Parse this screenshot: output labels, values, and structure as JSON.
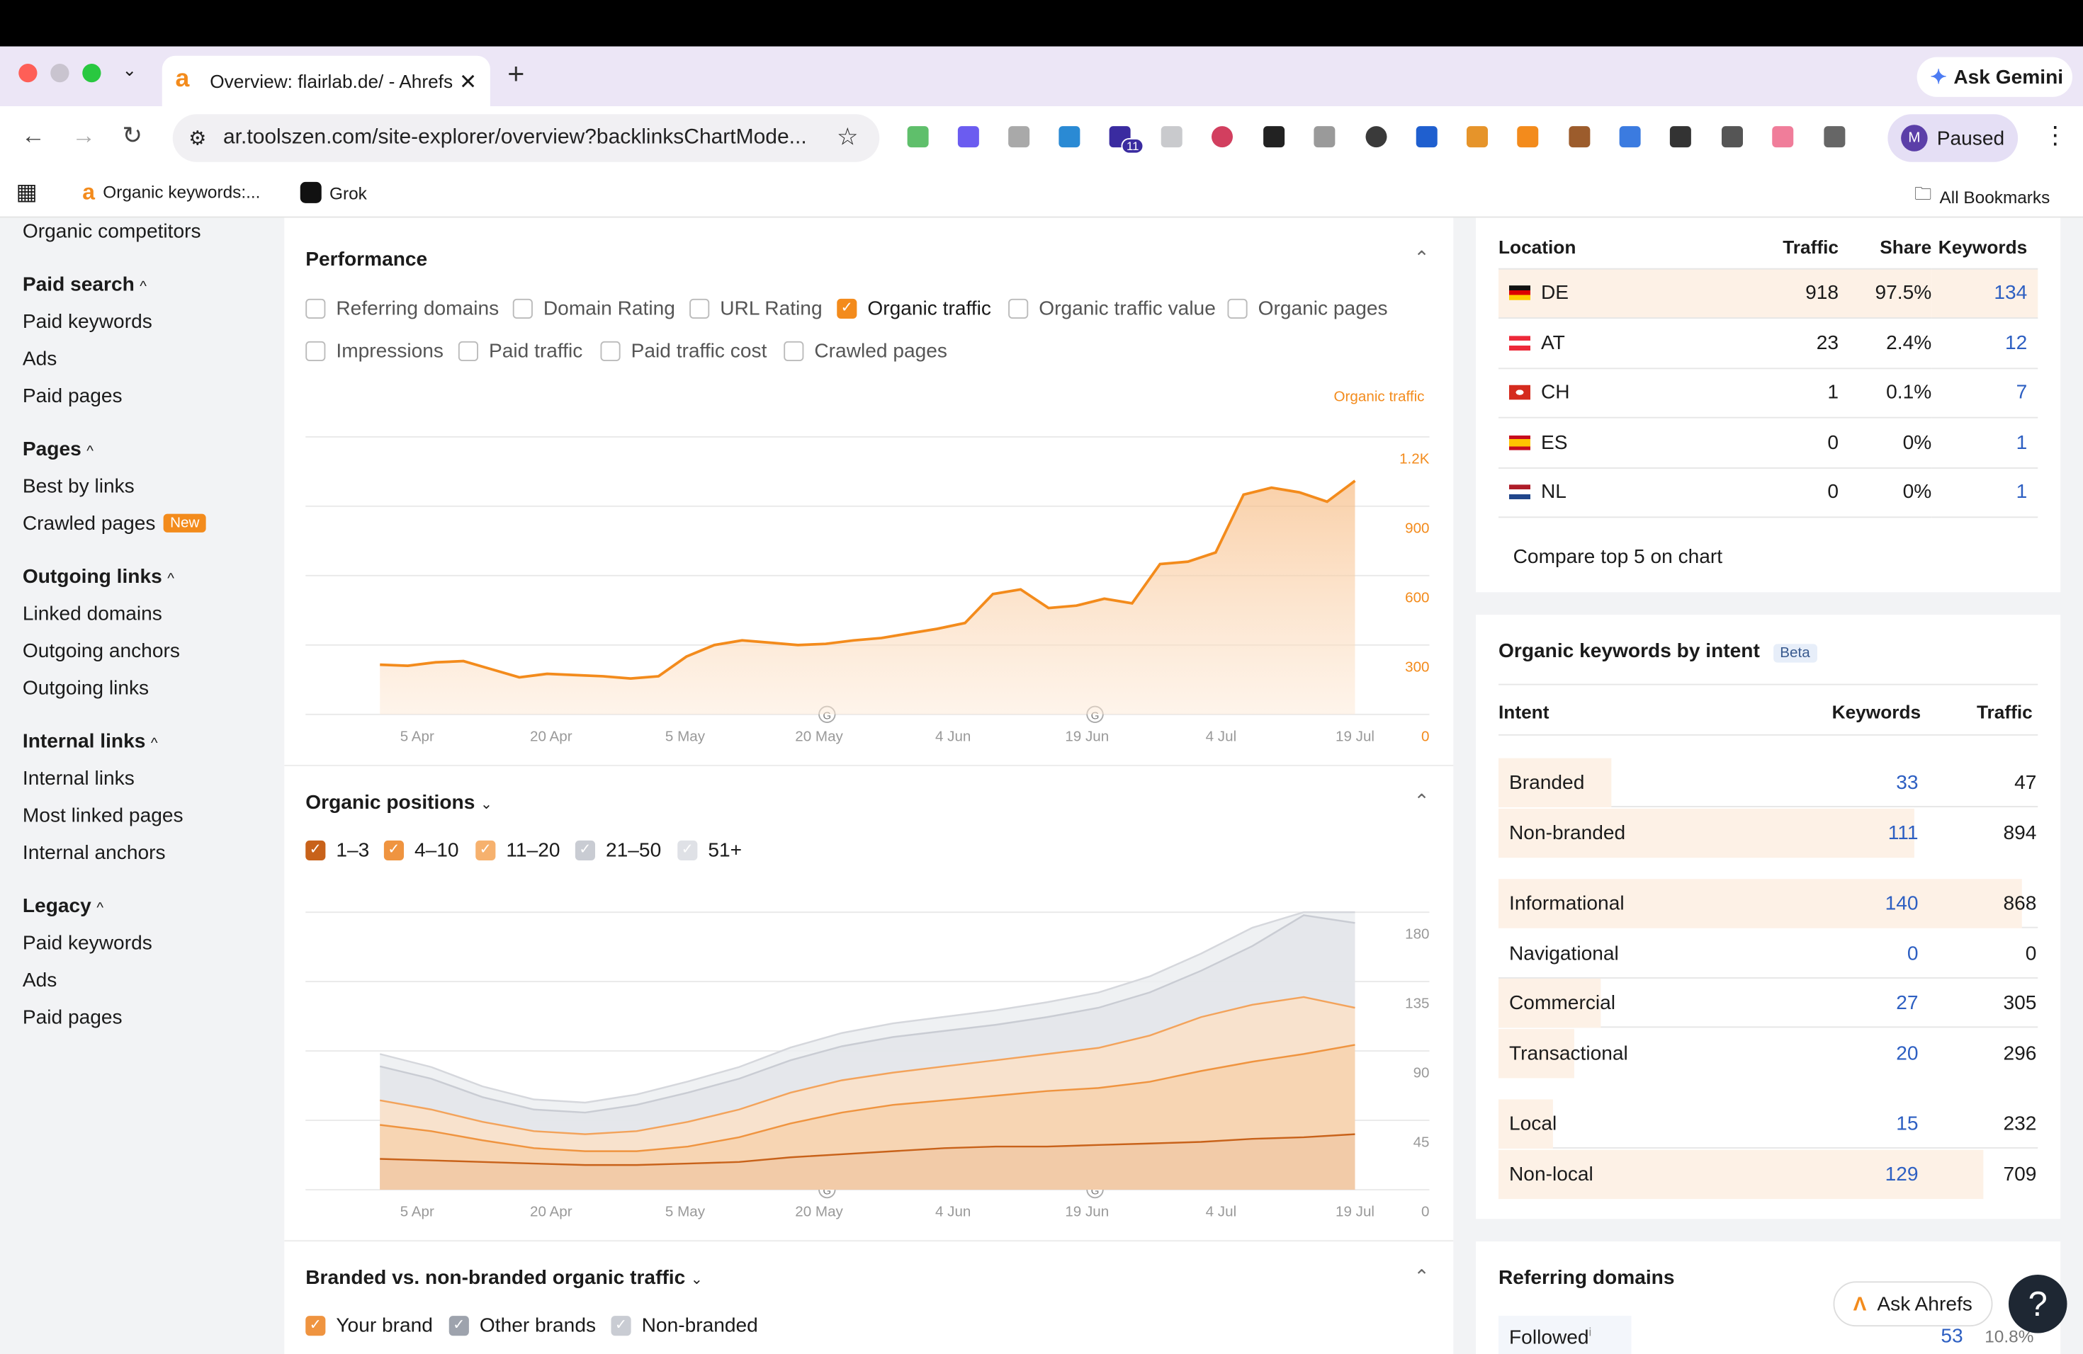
{
  "browser": {
    "tab_title": "Overview: flairlab.de/ - Ahrefs",
    "url": "ar.toolszen.com/site-explorer/overview?backlinksChartMode...",
    "ask_gemini": "Ask Gemini",
    "profile_initial": "M",
    "profile_status": "Paused",
    "extension_badge": "11",
    "bookmarks": [
      "Organic keywords:...",
      "Grok"
    ],
    "all_bookmarks": "All Bookmarks"
  },
  "sidebar": {
    "top_item": "Organic competitors",
    "groups": [
      {
        "heading": "Paid search",
        "items": [
          "Paid keywords",
          "Ads",
          "Paid pages"
        ]
      },
      {
        "heading": "Pages",
        "items": [
          "Best by links",
          "Crawled pages"
        ],
        "badge": "New"
      },
      {
        "heading": "Outgoing links",
        "items": [
          "Linked domains",
          "Outgoing anchors",
          "Outgoing links"
        ]
      },
      {
        "heading": "Internal links",
        "items": [
          "Internal links",
          "Most linked pages",
          "Internal anchors"
        ]
      },
      {
        "heading": "Legacy",
        "items": [
          "Paid keywords",
          "Ads",
          "Paid pages"
        ]
      }
    ]
  },
  "performance": {
    "title": "Performance",
    "checkboxes": [
      {
        "label": "Referring domains",
        "checked": false
      },
      {
        "label": "Domain Rating",
        "checked": false
      },
      {
        "label": "URL Rating",
        "checked": false
      },
      {
        "label": "Organic traffic",
        "checked": true
      },
      {
        "label": "Organic traffic value",
        "checked": false
      },
      {
        "label": "Organic pages",
        "checked": false
      },
      {
        "label": "Impressions",
        "checked": false
      },
      {
        "label": "Paid traffic",
        "checked": false
      },
      {
        "label": "Paid traffic cost",
        "checked": false
      },
      {
        "label": "Crawled pages",
        "checked": false
      }
    ],
    "series_label": "Organic traffic",
    "accent": "#f38b1c"
  },
  "positions": {
    "title": "Organic positions",
    "checkboxes": [
      {
        "label": "1–3",
        "color": "#c8621a"
      },
      {
        "label": "4–10",
        "color": "#ef9440"
      },
      {
        "label": "11–20",
        "color": "#f6b16e"
      },
      {
        "label": "21–50",
        "color": "#c9ccd3"
      },
      {
        "label": "51+",
        "color": "#dfe1e6"
      }
    ]
  },
  "branded_section": {
    "title": "Branded vs. non-branded organic traffic",
    "checkboxes": [
      {
        "label": "Your brand",
        "color": "#ef9440"
      },
      {
        "label": "Other brands",
        "color": "#9ea3ad"
      },
      {
        "label": "Non-branded",
        "color": "#c9ccd3"
      }
    ]
  },
  "chart_data": [
    {
      "type": "area",
      "series": [
        {
          "name": "Organic traffic",
          "color": "#f38b1c"
        }
      ],
      "x_ticks": [
        "5 Apr",
        "20 Apr",
        "5 May",
        "20 May",
        "4 Jun",
        "19 Jun",
        "4 Jul",
        "19 Jul"
      ],
      "y_ticks": [
        "0",
        "300",
        "600",
        "900",
        "1.2K"
      ],
      "ylim": [
        0,
        1200
      ],
      "grid": true,
      "x": [
        "5 Apr",
        "8 Apr",
        "11 Apr",
        "14 Apr",
        "17 Apr",
        "20 Apr",
        "23 Apr",
        "26 Apr",
        "29 Apr",
        "2 May",
        "5 May",
        "8 May",
        "11 May",
        "14 May",
        "17 May",
        "20 May",
        "23 May",
        "26 May",
        "29 May",
        "1 Jun",
        "4 Jun",
        "7 Jun",
        "10 Jun",
        "13 Jun",
        "16 Jun",
        "19 Jun",
        "22 Jun",
        "25 Jun",
        "28 Jun",
        "1 Jul",
        "4 Jul",
        "7 Jul",
        "10 Jul",
        "13 Jul",
        "16 Jul",
        "19 Jul"
      ],
      "values": [
        215,
        210,
        225,
        230,
        195,
        160,
        175,
        170,
        165,
        155,
        165,
        250,
        300,
        320,
        310,
        300,
        305,
        320,
        330,
        350,
        370,
        395,
        520,
        540,
        460,
        470,
        500,
        480,
        650,
        660,
        700,
        950,
        980,
        960,
        920,
        1010
      ],
      "annotations": [
        "20 May",
        "19 Jun"
      ]
    },
    {
      "type": "area",
      "series": [
        {
          "name": "1–3",
          "color": "#c8621a",
          "values": [
            20,
            19,
            18,
            17,
            16,
            16,
            17,
            18,
            21,
            23,
            25,
            27,
            28,
            28,
            29,
            30,
            31,
            33,
            34,
            36
          ]
        },
        {
          "name": "4–10",
          "color": "#ef9440",
          "values": [
            42,
            38,
            32,
            27,
            25,
            25,
            28,
            34,
            43,
            50,
            55,
            58,
            61,
            64,
            66,
            70,
            77,
            83,
            88,
            94
          ]
        },
        {
          "name": "11–20",
          "color": "#f6b16e",
          "values": [
            58,
            52,
            44,
            38,
            36,
            38,
            44,
            52,
            63,
            71,
            76,
            80,
            84,
            88,
            92,
            100,
            112,
            120,
            125,
            118
          ]
        },
        {
          "name": "21–50",
          "color": "#d8dbe1",
          "values": [
            80,
            72,
            60,
            52,
            50,
            55,
            63,
            72,
            84,
            93,
            99,
            103,
            107,
            112,
            118,
            128,
            142,
            158,
            178,
            173
          ]
        },
        {
          "name": "51+",
          "color": "#eceef1"
        }
      ],
      "x_ticks": [
        "5 Apr",
        "20 Apr",
        "5 May",
        "20 May",
        "4 Jun",
        "19 Jun",
        "4 Jul",
        "19 Jul"
      ],
      "y_ticks": [
        "0",
        "45",
        "90",
        "135",
        "180"
      ],
      "ylim": [
        0,
        180
      ],
      "grid": true,
      "annotations": [
        "20 May",
        "19 Jun"
      ]
    }
  ],
  "location_table": {
    "headers": [
      "Location",
      "Traffic",
      "Share",
      "Keywords"
    ],
    "rows": [
      {
        "flag": "de",
        "code": "DE",
        "traffic": "918",
        "share": "97.5%",
        "keywords": "134"
      },
      {
        "flag": "at",
        "code": "AT",
        "traffic": "23",
        "share": "2.4%",
        "keywords": "12"
      },
      {
        "flag": "ch",
        "code": "CH",
        "traffic": "1",
        "share": "0.1%",
        "keywords": "7"
      },
      {
        "flag": "es",
        "code": "ES",
        "traffic": "0",
        "share": "0%",
        "keywords": "1"
      },
      {
        "flag": "nl",
        "code": "NL",
        "traffic": "0",
        "share": "0%",
        "keywords": "1"
      }
    ],
    "compare_link": "Compare top 5 on chart"
  },
  "intent": {
    "title": "Organic keywords by intent",
    "badge": "Beta",
    "headers": [
      "Intent",
      "Keywords",
      "Traffic"
    ],
    "groups": [
      [
        {
          "label": "Branded",
          "keywords": "33",
          "traffic": "47",
          "share": 0.21
        },
        {
          "label": "Non-branded",
          "keywords": "111",
          "traffic": "894",
          "share": 0.77
        }
      ],
      [
        {
          "label": "Informational",
          "keywords": "140",
          "traffic": "868",
          "share": 0.97
        },
        {
          "label": "Navigational",
          "keywords": "0",
          "traffic": "0",
          "share": 0
        },
        {
          "label": "Commercial",
          "keywords": "27",
          "traffic": "305",
          "share": 0.19
        },
        {
          "label": "Transactional",
          "keywords": "20",
          "traffic": "296",
          "share": 0.14
        }
      ],
      [
        {
          "label": "Local",
          "keywords": "15",
          "traffic": "232",
          "share": 0.1
        },
        {
          "label": "Non-local",
          "keywords": "129",
          "traffic": "709",
          "share": 0.9
        }
      ]
    ]
  },
  "referring_domains": {
    "title": "Referring domains",
    "row_label": "Followed",
    "row_value": "53",
    "row_share": "10.8%"
  },
  "floating": {
    "ask_ahrefs": "Ask Ahrefs",
    "help": "?"
  }
}
